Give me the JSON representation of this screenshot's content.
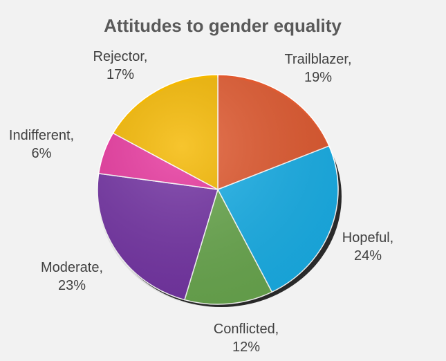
{
  "chart_data": {
    "type": "pie",
    "title": "Attitudes to gender equality",
    "slices": [
      {
        "label": "Trailblazer",
        "value": 19,
        "value_text": "19%",
        "color": "#e15a30"
      },
      {
        "label": "Hopeful",
        "value": 24,
        "value_text": "24%",
        "color": "#1ab0e8"
      },
      {
        "label": "Conflicted",
        "value": 12,
        "value_text": "12%",
        "color": "#6aa84f"
      },
      {
        "label": "Moderate",
        "value": 23,
        "value_text": "23%",
        "color": "#7434a4"
      },
      {
        "label": "Indifferent",
        "value": 6,
        "value_text": "6%",
        "color": "#e8389f"
      },
      {
        "label": "Rejector",
        "value": 17,
        "value_text": "17%",
        "color": "#f5b800"
      }
    ],
    "legend": "none",
    "data_labels": "outside"
  }
}
